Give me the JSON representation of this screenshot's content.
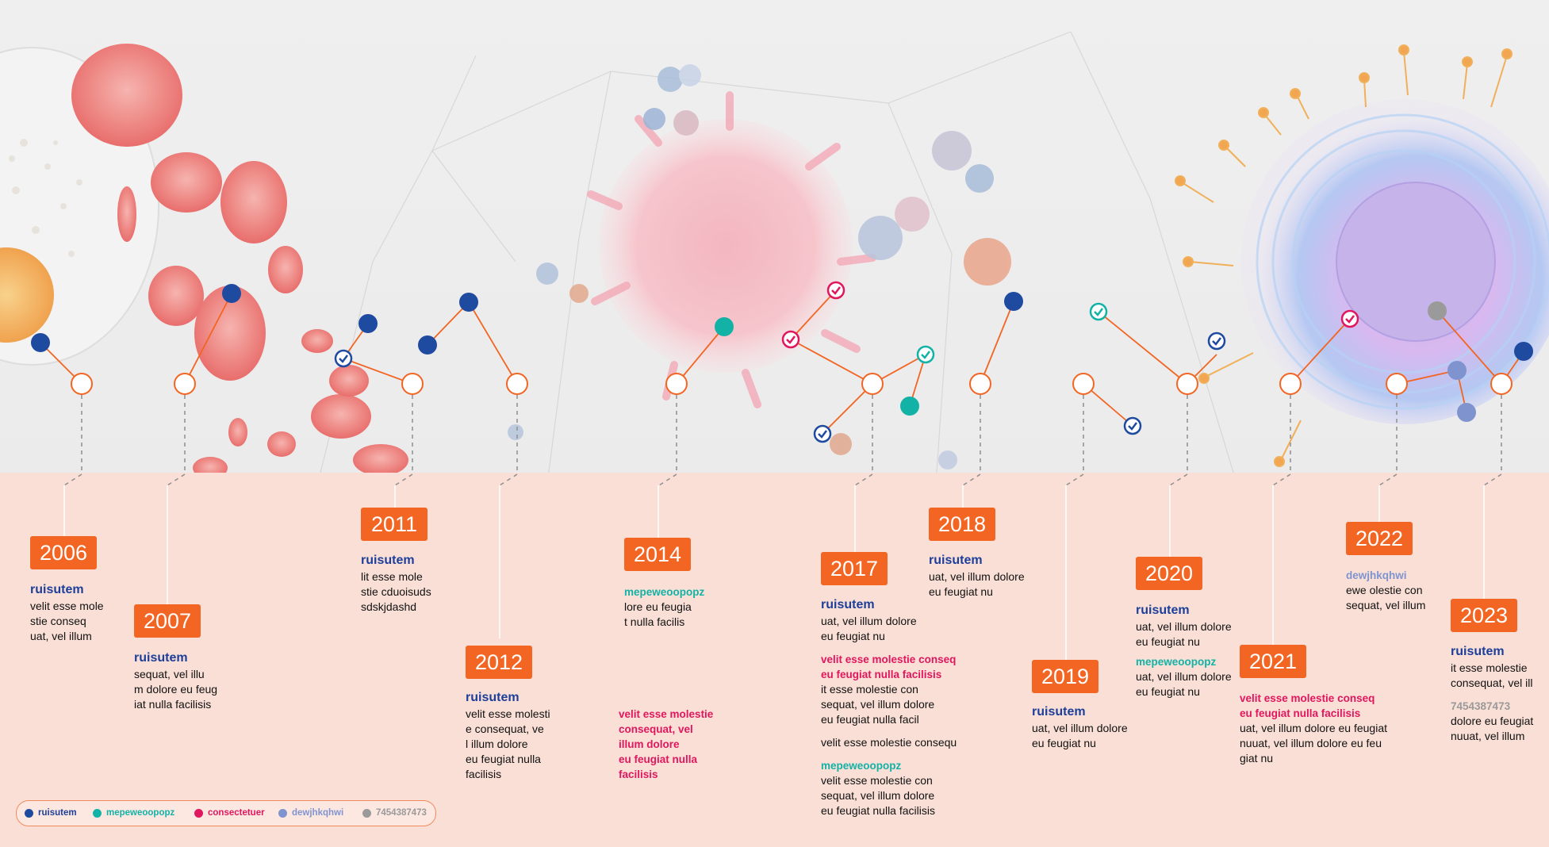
{
  "colors": {
    "ruisutem": "#1e4aa0",
    "mepeweoopopz": "#13b2a6",
    "consectetuer": "#e0175e",
    "dewjhkqhwi": "#7f94cf",
    "number": "#9a9a9a",
    "accent": "#f26522"
  },
  "legend": {
    "ruisutem": "ruisutem",
    "mepeweoopopz": "mepeweoopopz",
    "consectetuer": "consectetuer",
    "dewjhkqhwi": "dewjhkqhwi",
    "number": "7454387473"
  },
  "timeline": [
    {
      "year": "2006",
      "blocks": [
        {
          "label": "ruisutem",
          "text": "velit esse mole\nstie conseq\nuat, vel illum"
        }
      ]
    },
    {
      "year": "2007",
      "blocks": [
        {
          "label": "ruisutem",
          "text": "sequat, vel illu\nm dolore eu feug\niat nulla facilisis"
        }
      ]
    },
    {
      "year": "2011",
      "blocks": [
        {
          "label": "ruisutem",
          "text": "lit esse mole\nstie cduoisuds\nsdskjdashd"
        }
      ]
    },
    {
      "year": "2012",
      "blocks": [
        {
          "label": "ruisutem",
          "text": "velit esse molesti\ne consequat, ve\nl illum dolore\neu feugiat nulla\nfacilisis"
        }
      ]
    },
    {
      "year": "2014",
      "blocks": [
        {
          "label": "mepeweoopopz",
          "text": "lore eu feugia\nt nulla facilis"
        },
        {
          "label": "velit esse molestie\nconsequat, vel\nillum dolore\neu feugiat nulla\nfacilisis"
        }
      ]
    },
    {
      "year": "2017",
      "blocks": [
        {
          "label": "ruisutem",
          "text": "uat, vel illum dolore\neu feugiat nu"
        },
        {
          "label": "velit esse molestie conseq\neu feugiat nulla facilisis",
          "text": "it esse molestie con\nsequat, vel illum dolore\neu feugiat nulla facil"
        },
        {
          "text": "velit esse molestie consequ"
        },
        {
          "label": "mepeweoopopz",
          "text": "velit esse molestie con\nsequat, vel illum dolore\neu feugiat nulla facilisis"
        }
      ]
    },
    {
      "year": "2018",
      "blocks": [
        {
          "label": "ruisutem",
          "text": "uat, vel illum dolore\neu feugiat nu"
        }
      ]
    },
    {
      "year": "2019",
      "blocks": [
        {
          "label": "ruisutem",
          "text": "uat, vel illum dolore\neu feugiat nu"
        }
      ]
    },
    {
      "year": "2020",
      "blocks": [
        {
          "label": "ruisutem",
          "text": "uat, vel illum dolore\neu feugiat nu"
        },
        {
          "label": "mepeweoopopz",
          "text": "uat, vel illum dolore\neu feugiat nu"
        }
      ]
    },
    {
      "year": "2021",
      "blocks": [
        {
          "label": "velit esse molestie conseq\neu feugiat nulla facilisis",
          "text": "uat, vel illum dolore eu feugiat\nnuuat, vel illum dolore eu feu\ngiat nu"
        }
      ]
    },
    {
      "year": "2022",
      "blocks": [
        {
          "label": "dewjhkqhwi",
          "text": "ewe olestie con\nsequat, vel illum"
        }
      ]
    },
    {
      "year": "2023",
      "blocks": [
        {
          "label": "ruisutem",
          "text": "it esse molestie\nconsequat, vel ill"
        },
        {
          "label": "7454387473",
          "text": "dolore eu feugiat\nnuuat, vel illum"
        }
      ]
    }
  ]
}
